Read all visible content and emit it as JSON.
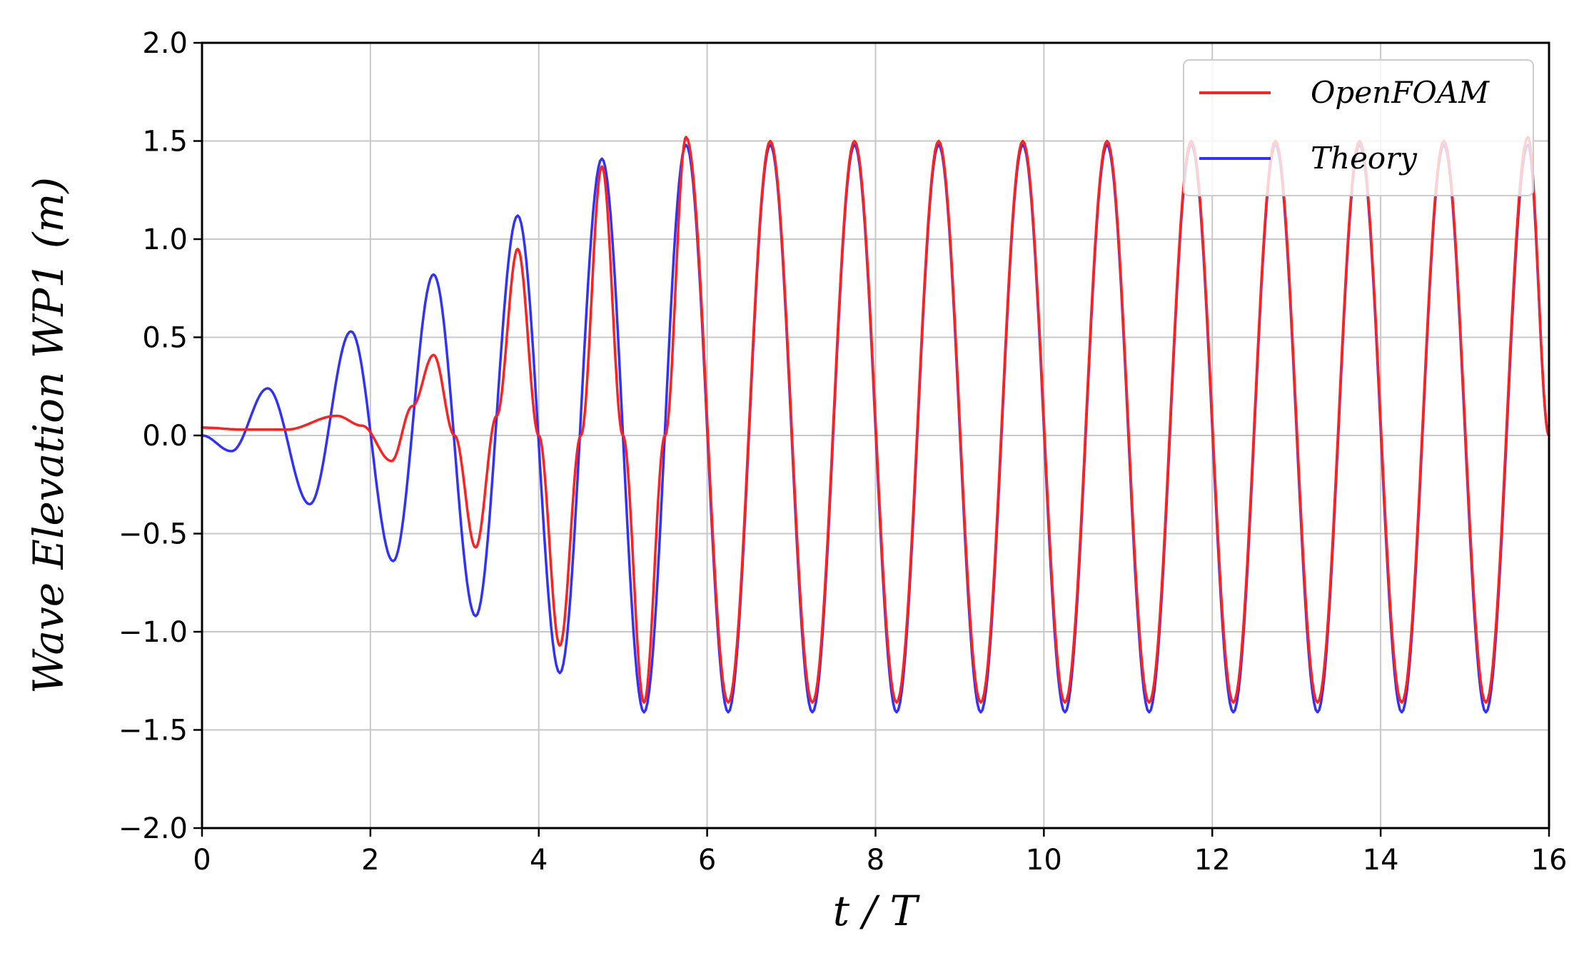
{
  "chart_data": {
    "type": "line",
    "title": "",
    "xlabel": "t / T",
    "ylabel": "Wave Elevation WP1 (m)",
    "xlim": [
      0,
      16
    ],
    "ylim": [
      -2.0,
      2.0
    ],
    "xticks": [
      0,
      2,
      4,
      6,
      8,
      10,
      12,
      14,
      16
    ],
    "xtick_labels": [
      "0",
      "2",
      "4",
      "6",
      "8",
      "10",
      "12",
      "14",
      "16"
    ],
    "yticks": [
      -2.0,
      -1.5,
      -1.0,
      -0.5,
      0.0,
      0.5,
      1.0,
      1.5,
      2.0
    ],
    "ytick_labels": [
      "−2.0",
      "−1.5",
      "−1.0",
      "−0.5",
      "0.0",
      "0.5",
      "1.0",
      "1.5",
      "2.0"
    ],
    "grid": true,
    "legend_position": "top-right",
    "series": [
      {
        "name": "OpenFOAM",
        "color": "#ff2020",
        "x": [
          0,
          0.5,
          1.0,
          1.6,
          1.9,
          2.25,
          2.5,
          2.75,
          3.0,
          3.25,
          3.5,
          3.75,
          4.0,
          4.25,
          4.5,
          4.75,
          5.0,
          5.25,
          5.5,
          5.75,
          6.25,
          6.75,
          7.25,
          7.75,
          8.25,
          8.75,
          9.25,
          9.75,
          10.25,
          10.75,
          11.25,
          11.75,
          12.25,
          12.75,
          13.25,
          13.75,
          14.25,
          14.75,
          15.25,
          15.75,
          16.0
        ],
        "y": [
          0.04,
          0.03,
          0.03,
          0.1,
          0.05,
          -0.13,
          0.15,
          0.41,
          0.0,
          -0.57,
          0.1,
          0.95,
          0.0,
          -1.07,
          0.0,
          1.37,
          0.0,
          -1.36,
          0.0,
          1.52,
          -1.36,
          1.5,
          -1.36,
          1.5,
          -1.36,
          1.5,
          -1.36,
          1.5,
          -1.36,
          1.5,
          -1.36,
          1.5,
          -1.36,
          1.5,
          -1.36,
          1.5,
          -1.36,
          1.5,
          -1.36,
          1.52,
          0.0
        ]
      },
      {
        "name": "Theory",
        "color": "#3030ff",
        "x": [
          0,
          0.35,
          0.78,
          1.28,
          1.77,
          2.27,
          2.75,
          3.25,
          3.75,
          4.25,
          4.75,
          5.25,
          5.75,
          6.25,
          6.75,
          7.25,
          7.75,
          8.25,
          8.75,
          9.25,
          9.75,
          10.25,
          10.75,
          11.25,
          11.75,
          12.25,
          12.75,
          13.25,
          13.75,
          14.25,
          14.75,
          15.25,
          15.75,
          16.0
        ],
        "y": [
          0.0,
          -0.08,
          0.24,
          -0.35,
          0.53,
          -0.64,
          0.82,
          -0.92,
          1.12,
          -1.21,
          1.41,
          -1.41,
          1.48,
          -1.41,
          1.48,
          -1.41,
          1.48,
          -1.41,
          1.48,
          -1.41,
          1.48,
          -1.41,
          1.48,
          -1.41,
          1.48,
          -1.41,
          1.48,
          -1.41,
          1.48,
          -1.41,
          1.48,
          -1.41,
          1.48,
          0.0
        ]
      }
    ]
  }
}
